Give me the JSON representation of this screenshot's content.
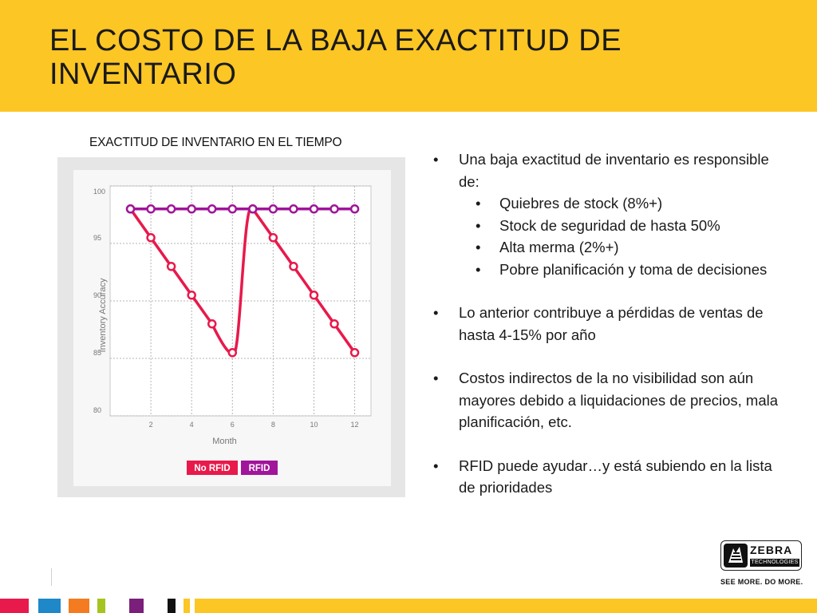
{
  "header": {
    "title": "EL COSTO DE LA BAJA EXACTITUD DE INVENTARIO"
  },
  "chart_data": {
    "type": "line",
    "title": "EXACTITUD DE INVENTARIO EN EL TIEMPO",
    "xlabel": "Month",
    "ylabel": "Inventory Accuracy",
    "xlim": [
      0,
      12.8
    ],
    "ylim": [
      80,
      100
    ],
    "x_ticks": [
      2,
      4,
      6,
      8,
      10,
      12
    ],
    "y_ticks": [
      80,
      85,
      90,
      95,
      100
    ],
    "grid": true,
    "legend_position": "bottom",
    "series": [
      {
        "name": "No RFID",
        "color": "#e8194b",
        "x": [
          1,
          2,
          3,
          4,
          5,
          6,
          7,
          8,
          9,
          10,
          11,
          12
        ],
        "y": [
          98,
          95.5,
          93,
          90.5,
          88,
          85.5,
          98,
          95.5,
          93,
          90.5,
          88,
          85.5
        ]
      },
      {
        "name": "RFID",
        "color": "#a0159a",
        "x": [
          1,
          2,
          3,
          4,
          5,
          6,
          7,
          8,
          9,
          10,
          11,
          12
        ],
        "y": [
          98,
          98,
          98,
          98,
          98,
          98,
          98,
          98,
          98,
          98,
          98,
          98
        ]
      }
    ]
  },
  "bullets": {
    "b1": "Una baja exactitud de inventario es responsible de:",
    "sub1": "Quiebres de stock (8%+)",
    "sub2": "Stock de seguridad de hasta 50%",
    "sub3": "Alta merma (2%+)",
    "sub4": "Pobre planificación y toma de decisiones",
    "b2": "Lo anterior contribuye a pérdidas de ventas de hasta 4-15% por año",
    "b3": "Costos indirectos de la no visibilidad son aún mayores debido a liquidaciones de precios, mala planificación, etc.",
    "b4": "RFID puede ayudar…y está subiendo en la lista de prioridades",
    "marker": "•"
  },
  "logo": {
    "name": "ZEBRA",
    "sub": "TECHNOLOGIES",
    "tagline": "SEE MORE. DO MORE."
  },
  "footer_colors": [
    "#e8194b",
    "#1e88c9",
    "#f47b20",
    "#a6c41f",
    "#7a1f7a",
    "#111111",
    "#fcc624"
  ]
}
